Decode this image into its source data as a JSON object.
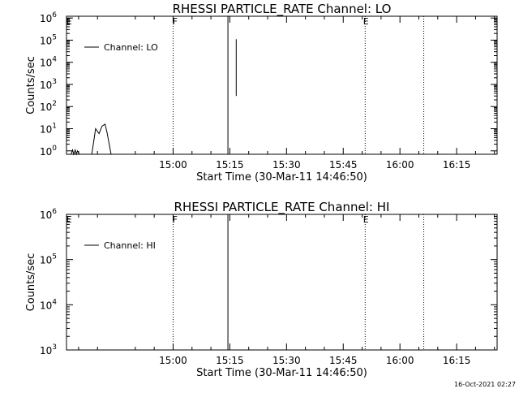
{
  "chart_data": [
    {
      "type": "line",
      "title": "RHESSI PARTICLE_RATE Channel: LO",
      "xlabel": "Start Time (30-Mar-11 14:46:50)",
      "ylabel": "Counts/sec",
      "x_ticks": [
        "15:00",
        "15:15",
        "15:30",
        "15:45",
        "16:00",
        "16:15"
      ],
      "x_tick_minutes": [
        15,
        30,
        45,
        60,
        75,
        90
      ],
      "x_range_minutes": [
        -13.2,
        100.7
      ],
      "y_scale": "log",
      "y_ticks": [
        {
          "base": "10",
          "exp": "0",
          "value": 1
        },
        {
          "base": "10",
          "exp": "1",
          "value": 10
        },
        {
          "base": "10",
          "exp": "2",
          "value": 100
        },
        {
          "base": "10",
          "exp": "3",
          "value": 1000
        },
        {
          "base": "10",
          "exp": "4",
          "value": 10000
        },
        {
          "base": "10",
          "exp": "5",
          "value": 100000
        },
        {
          "base": "10",
          "exp": "6",
          "value": 1000000
        }
      ],
      "y_range": [
        0.7,
        1200000
      ],
      "legend": {
        "label": "Channel: LO",
        "position": "top-left"
      },
      "series": [
        {
          "name": "Channel: LO",
          "x": [
            -12,
            -11.6,
            -11.3,
            -10.9,
            -10.6,
            -10.3,
            -9.8,
            -6.5,
            -5.5,
            -4.6,
            -3.8,
            -3.0,
            -2.5,
            -1.4
          ],
          "y": [
            0.7,
            1.1,
            0.7,
            1.1,
            0.7,
            1.0,
            0.7,
            0.7,
            10,
            6,
            13,
            16,
            7,
            0.7
          ]
        },
        {
          "name": "Channel: LO",
          "x": [
            31.7,
            31.7,
            31.7
          ],
          "y": [
            300,
            5000,
            110000
          ]
        }
      ],
      "solid_lines_minutes": [
        29.5
      ],
      "dotted_lines_minutes": [
        15.0,
        65.8,
        81.3
      ],
      "flags": [
        {
          "label": "E",
          "minute": -12.5
        },
        {
          "label": "F",
          "minute": 15.5
        },
        {
          "label": "E",
          "minute": 66.0
        }
      ]
    },
    {
      "type": "line",
      "title": "RHESSI PARTICLE_RATE Channel: HI",
      "xlabel": "Start Time (30-Mar-11 14:46:50)",
      "ylabel": "Counts/sec",
      "x_ticks": [
        "15:00",
        "15:15",
        "15:30",
        "15:45",
        "16:00",
        "16:15"
      ],
      "x_tick_minutes": [
        15,
        30,
        45,
        60,
        75,
        90
      ],
      "x_range_minutes": [
        -13.2,
        100.7
      ],
      "y_scale": "log",
      "y_ticks": [
        {
          "base": "10",
          "exp": "3",
          "value": 1000
        },
        {
          "base": "10",
          "exp": "4",
          "value": 10000
        },
        {
          "base": "10",
          "exp": "5",
          "value": 100000
        },
        {
          "base": "10",
          "exp": "6",
          "value": 1000000
        }
      ],
      "y_range": [
        1000,
        1000000
      ],
      "legend": {
        "label": "Channel: HI",
        "position": "top-left"
      },
      "series": [
        {
          "name": "Channel: HI",
          "x": [],
          "y": []
        }
      ],
      "solid_lines_minutes": [
        29.5
      ],
      "dotted_lines_minutes": [
        15.0,
        65.8,
        81.3
      ],
      "flags": [
        {
          "label": "E",
          "minute": -12.5
        },
        {
          "label": "F",
          "minute": 15.5
        },
        {
          "label": "E",
          "minute": 66.0
        }
      ]
    }
  ],
  "timestamp": "16-Oct-2021 02:27"
}
